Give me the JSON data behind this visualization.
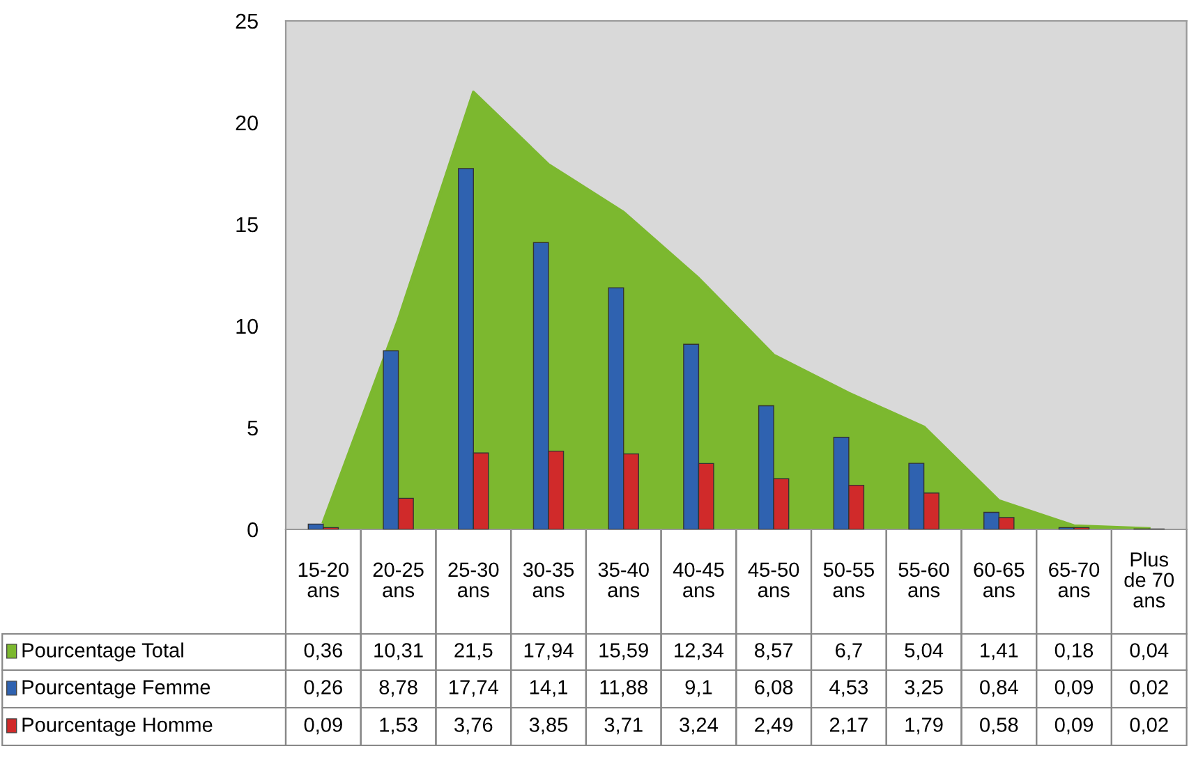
{
  "chart_data": {
    "type": "bar",
    "categories": [
      "15-20 ans",
      "20-25 ans",
      "25-30 ans",
      "30-35 ans",
      "35-40 ans",
      "40-45 ans",
      "45-50 ans",
      "50-55 ans",
      "55-60 ans",
      "60-65 ans",
      "65-70 ans",
      "Plus de 70 ans"
    ],
    "series": [
      {
        "name": "Pourcentage Total",
        "type": "area",
        "color": "#7cb82f",
        "values": [
          0.36,
          10.31,
          21.5,
          17.94,
          15.59,
          12.34,
          8.57,
          6.7,
          5.04,
          1.41,
          0.18,
          0.04
        ],
        "value_labels": [
          "0,36",
          "10,31",
          "21,5",
          "17,94",
          "15,59",
          "12,34",
          "8,57",
          "6,7",
          "5,04",
          "1,41",
          "0,18",
          "0,04"
        ]
      },
      {
        "name": "Pourcentage Femme",
        "color": "#2f62b0",
        "values": [
          0.26,
          8.78,
          17.74,
          14.1,
          11.88,
          9.1,
          6.08,
          4.53,
          3.25,
          0.84,
          0.09,
          0.02
        ],
        "value_labels": [
          "0,26",
          "8,78",
          "17,74",
          "14,1",
          "11,88",
          "9,1",
          "6,08",
          "4,53",
          "3,25",
          "0,84",
          "0,09",
          "0,02"
        ]
      },
      {
        "name": "Pourcentage Homme",
        "color": "#d02a2a",
        "values": [
          0.09,
          1.53,
          3.76,
          3.85,
          3.71,
          3.24,
          2.49,
          2.17,
          1.79,
          0.58,
          0.09,
          0.02
        ],
        "value_labels": [
          "0,09",
          "1,53",
          "3,76",
          "3,85",
          "3,71",
          "3,24",
          "2,49",
          "2,17",
          "1,79",
          "0,58",
          "0,09",
          "0,02"
        ]
      }
    ],
    "legend": "bottom left",
    "ylim": [
      0,
      25
    ],
    "yticks": [
      0,
      5,
      10,
      15,
      20,
      25
    ],
    "grid": false
  }
}
